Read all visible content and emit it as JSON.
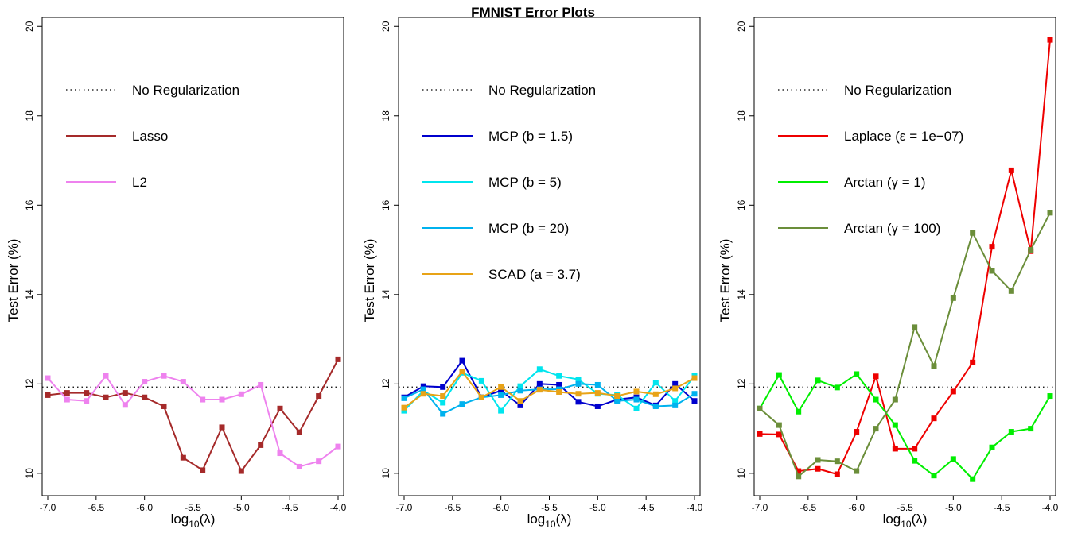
{
  "title": "FMNIST Error Plots",
  "chart_data": [
    {
      "type": "line",
      "xlabel_base": "log",
      "xlabel_sub": "10",
      "xlabel_arg": "(λ)",
      "ylabel": "Test Error (%)",
      "xlim": [
        -7.0,
        -4.0
      ],
      "ylim": [
        9.5,
        20.2
      ],
      "xticks": [
        "-7.0",
        "-6.5",
        "-6.0",
        "-5.5",
        "-5.0",
        "-4.5",
        "-4.0"
      ],
      "yticks": [
        "10",
        "12",
        "14",
        "16",
        "18",
        "20"
      ],
      "baseline": {
        "name": "No Regularization",
        "value": 11.93
      },
      "x": [
        -7.0,
        -6.8,
        -6.6,
        -6.4,
        -6.2,
        -6.0,
        -5.8,
        -5.6,
        -5.4,
        -5.2,
        -5.0,
        -4.8,
        -4.6,
        -4.4,
        -4.2,
        -4.0
      ],
      "series": [
        {
          "name": "Lasso",
          "color": "#a52a2a",
          "values": [
            11.75,
            11.8,
            11.8,
            11.7,
            11.8,
            11.7,
            11.5,
            10.35,
            10.07,
            11.03,
            10.05,
            10.63,
            11.45,
            10.92,
            11.73,
            12.55
          ]
        },
        {
          "name": "L2",
          "color": "#ee82ee",
          "values": [
            12.13,
            11.65,
            11.62,
            12.18,
            11.53,
            12.05,
            12.18,
            12.05,
            11.65,
            11.65,
            11.77,
            11.98,
            10.45,
            10.15,
            10.27,
            10.6
          ]
        }
      ],
      "legend": [
        "No Regularization",
        "Lasso",
        "L2"
      ]
    },
    {
      "type": "line",
      "xlabel_base": "log",
      "xlabel_sub": "10",
      "xlabel_arg": "(λ)",
      "ylabel": "Test Error (%)",
      "xlim": [
        -7.0,
        -4.0
      ],
      "ylim": [
        9.5,
        20.2
      ],
      "xticks": [
        "-7.0",
        "-6.5",
        "-6.0",
        "-5.5",
        "-5.0",
        "-4.5",
        "-4.0"
      ],
      "yticks": [
        "10",
        "12",
        "14",
        "16",
        "18",
        "20"
      ],
      "baseline": {
        "name": "No Regularization",
        "value": 11.93
      },
      "x": [
        -7.0,
        -6.8,
        -6.6,
        -6.4,
        -6.2,
        -6.0,
        -5.8,
        -5.6,
        -5.4,
        -5.2,
        -5.0,
        -4.8,
        -4.6,
        -4.4,
        -4.2,
        -4.0
      ],
      "series": [
        {
          "name": "MCP (b = 1.5)",
          "color": "#0000cd",
          "values": [
            11.7,
            11.95,
            11.93,
            12.52,
            11.7,
            11.85,
            11.52,
            12.0,
            11.98,
            11.6,
            11.5,
            11.65,
            11.7,
            11.52,
            12.0,
            11.62
          ]
        },
        {
          "name": "MCP (b = 5)",
          "color": "#00e5ee",
          "values": [
            11.4,
            11.85,
            11.58,
            12.25,
            12.07,
            11.4,
            11.95,
            12.33,
            12.18,
            12.1,
            11.78,
            11.75,
            11.45,
            12.03,
            11.62,
            12.18
          ]
        },
        {
          "name": "MCP (b = 20)",
          "color": "#00b2ee",
          "values": [
            11.68,
            11.88,
            11.33,
            11.55,
            11.7,
            11.75,
            11.85,
            11.88,
            11.88,
            12.0,
            11.98,
            11.62,
            11.65,
            11.5,
            11.52,
            11.78
          ]
        },
        {
          "name": "SCAD (a = 3.7)",
          "color": "#e8a317",
          "values": [
            11.47,
            11.78,
            11.73,
            12.28,
            11.7,
            11.93,
            11.62,
            11.87,
            11.82,
            11.78,
            11.8,
            11.73,
            11.83,
            11.77,
            11.9,
            12.13
          ]
        }
      ],
      "legend": [
        "No Regularization",
        "MCP (b = 1.5)",
        "MCP (b = 5)",
        "MCP (b = 20)",
        "SCAD (a = 3.7)"
      ]
    },
    {
      "type": "line",
      "xlabel_base": "log",
      "xlabel_sub": "10",
      "xlabel_arg": "(λ)",
      "ylabel": "Test Error (%)",
      "xlim": [
        -7.0,
        -4.0
      ],
      "ylim": [
        9.5,
        20.2
      ],
      "xticks": [
        "-7.0",
        "-6.5",
        "-6.0",
        "-5.5",
        "-5.0",
        "-4.5",
        "-4.0"
      ],
      "yticks": [
        "10",
        "12",
        "14",
        "16",
        "18",
        "20"
      ],
      "baseline": {
        "name": "No Regularization",
        "value": 11.93
      },
      "x": [
        -7.0,
        -6.8,
        -6.6,
        -6.4,
        -6.2,
        -6.0,
        -5.8,
        -5.6,
        -5.4,
        -5.2,
        -5.0,
        -4.8,
        -4.6,
        -4.4,
        -4.2,
        -4.0
      ],
      "series": [
        {
          "name": "Laplace (ε = 1e−07)",
          "color": "#ee0000",
          "values": [
            10.88,
            10.87,
            10.05,
            10.1,
            9.98,
            10.93,
            12.17,
            10.55,
            10.55,
            11.23,
            11.83,
            12.48,
            15.07,
            16.78,
            14.97,
            19.7
          ]
        },
        {
          "name": "Arctan (γ = 1)",
          "color": "#00ee00",
          "values": [
            11.45,
            12.2,
            11.38,
            12.08,
            11.92,
            12.22,
            11.65,
            11.08,
            10.28,
            9.95,
            10.32,
            9.87,
            10.58,
            10.93,
            11.0,
            11.73
          ]
        },
        {
          "name": "Arctan (γ = 100)",
          "color": "#6b8e3a",
          "values": [
            11.45,
            11.08,
            9.93,
            10.3,
            10.27,
            10.05,
            11.0,
            11.65,
            13.27,
            12.4,
            13.92,
            15.38,
            14.53,
            14.08,
            15.0,
            15.83
          ]
        }
      ],
      "legend": [
        "No Regularization",
        "Laplace (ε = 1e−07)",
        "Arctan (γ = 1)",
        "Arctan (γ = 100)"
      ]
    }
  ]
}
